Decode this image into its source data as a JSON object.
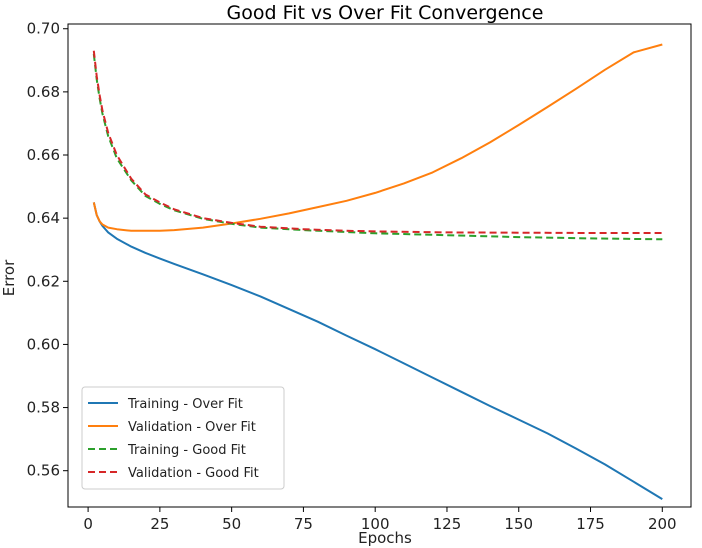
{
  "chart_data": {
    "type": "line",
    "title": "Good Fit vs Over Fit Convergence",
    "xlabel": "Epochs",
    "ylabel": "Error",
    "xlim": [
      -7,
      210
    ],
    "ylim": [
      0.5485,
      0.7015
    ],
    "xticks": [
      0,
      25,
      50,
      75,
      100,
      125,
      150,
      175,
      200
    ],
    "xtick_labels": [
      "0",
      "25",
      "50",
      "75",
      "100",
      "125",
      "150",
      "175",
      "200"
    ],
    "yticks": [
      0.56,
      0.58,
      0.6,
      0.62,
      0.64,
      0.66,
      0.68,
      0.7
    ],
    "ytick_labels": [
      "0.56",
      "0.58",
      "0.60",
      "0.62",
      "0.64",
      "0.66",
      "0.68",
      "0.70"
    ],
    "grid": false,
    "legend_position": "bottom-left",
    "series": [
      {
        "name": "Training - Over Fit",
        "color": "#1f77b4",
        "style": "solid",
        "x": [
          2,
          3,
          4,
          5,
          7,
          10,
          15,
          20,
          25,
          30,
          40,
          50,
          60,
          70,
          80,
          90,
          100,
          110,
          120,
          130,
          140,
          150,
          160,
          170,
          180,
          190,
          200
        ],
        "y": [
          0.645,
          0.641,
          0.639,
          0.6375,
          0.6355,
          0.6335,
          0.631,
          0.629,
          0.6272,
          0.6255,
          0.6222,
          0.6188,
          0.6152,
          0.6112,
          0.6072,
          0.6028,
          0.5985,
          0.594,
          0.5895,
          0.585,
          0.5805,
          0.5762,
          0.5718,
          0.567,
          0.562,
          0.5565,
          0.551
        ]
      },
      {
        "name": "Validation - Over Fit",
        "color": "#ff7f0e",
        "style": "solid",
        "x": [
          2,
          3,
          4,
          5,
          7,
          10,
          15,
          20,
          25,
          30,
          40,
          50,
          60,
          70,
          80,
          90,
          100,
          110,
          120,
          130,
          140,
          150,
          160,
          170,
          180,
          190,
          200
        ],
        "y": [
          0.645,
          0.641,
          0.639,
          0.638,
          0.637,
          0.6365,
          0.636,
          0.636,
          0.636,
          0.6362,
          0.637,
          0.6383,
          0.6398,
          0.6415,
          0.6435,
          0.6455,
          0.648,
          0.651,
          0.6545,
          0.659,
          0.664,
          0.6695,
          0.6752,
          0.681,
          0.687,
          0.6925,
          0.695
        ]
      },
      {
        "name": "Training - Good Fit",
        "color": "#2ca02c",
        "style": "dashed",
        "x": [
          2,
          3,
          4,
          5,
          7,
          10,
          15,
          20,
          25,
          30,
          40,
          50,
          60,
          75,
          90,
          100,
          125,
          150,
          175,
          200
        ],
        "y": [
          0.692,
          0.684,
          0.678,
          0.673,
          0.666,
          0.659,
          0.652,
          0.647,
          0.6445,
          0.6425,
          0.6398,
          0.6382,
          0.637,
          0.6362,
          0.6356,
          0.6352,
          0.6346,
          0.634,
          0.6336,
          0.6333
        ]
      },
      {
        "name": "Validation - Good Fit",
        "color": "#d62728",
        "style": "dashed",
        "x": [
          2,
          3,
          4,
          5,
          7,
          10,
          15,
          20,
          25,
          30,
          40,
          50,
          60,
          75,
          90,
          100,
          125,
          150,
          175,
          200
        ],
        "y": [
          0.693,
          0.685,
          0.679,
          0.674,
          0.667,
          0.66,
          0.6525,
          0.6475,
          0.645,
          0.6428,
          0.64,
          0.6385,
          0.6373,
          0.6365,
          0.636,
          0.6358,
          0.6355,
          0.6354,
          0.6353,
          0.6353
        ]
      }
    ]
  }
}
